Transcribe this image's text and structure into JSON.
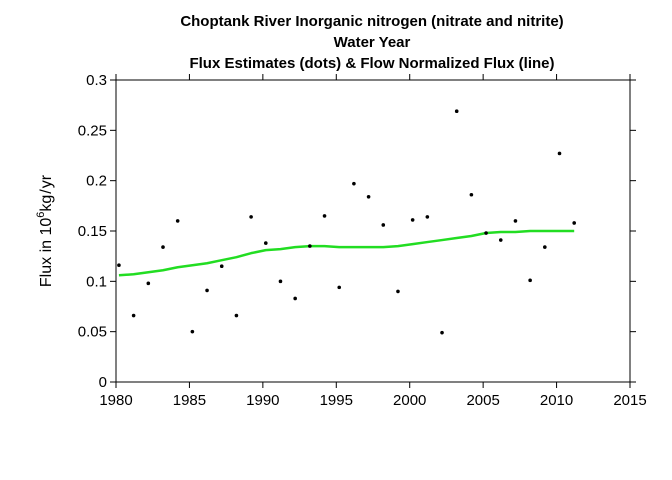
{
  "chart_data": {
    "type": "scatter",
    "title_line1": "Choptank River   Inorganic nitrogen (nitrate and nitrite)",
    "title_line2": "Water Year",
    "title_line3": "Flux Estimates (dots) & Flow Normalized Flux (line)",
    "ylabel": {
      "prefix": "Flux in 10",
      "exponent": "6",
      "unit_numerator": "kg",
      "slash": "/",
      "unit_denominator": "yr"
    },
    "xlabel": "",
    "xlim": [
      1980,
      2015
    ],
    "ylim": [
      0,
      0.3
    ],
    "x_ticks": [
      1980,
      1985,
      1990,
      1995,
      2000,
      2005,
      2010,
      2015
    ],
    "x_tick_labels": [
      "1980",
      "1985",
      "1990",
      "1995",
      "2000",
      "2005",
      "2010",
      "2015"
    ],
    "y_ticks": [
      0,
      0.05,
      0.1,
      0.15,
      0.2,
      0.25,
      0.3
    ],
    "y_tick_labels": [
      "0",
      "0.05",
      "0.1",
      "0.15",
      "0.2",
      "0.25",
      "0.3"
    ],
    "series": [
      {
        "name": "Flux Estimates",
        "kind": "points",
        "color": "#000000",
        "x": [
          1980.2,
          1981.2,
          1982.2,
          1983.2,
          1984.2,
          1985.2,
          1986.2,
          1987.2,
          1988.2,
          1989.2,
          1990.2,
          1991.2,
          1992.2,
          1993.2,
          1994.2,
          1995.2,
          1996.2,
          1997.2,
          1998.2,
          1999.2,
          2000.2,
          2001.2,
          2002.2,
          2003.2,
          2004.2,
          2005.2,
          2006.2,
          2007.2,
          2008.2,
          2009.2,
          2010.2,
          2011.2
        ],
        "y": [
          0.116,
          0.066,
          0.098,
          0.134,
          0.16,
          0.05,
          0.091,
          0.115,
          0.066,
          0.164,
          0.138,
          0.1,
          0.083,
          0.135,
          0.165,
          0.094,
          0.197,
          0.184,
          0.156,
          0.09,
          0.161,
          0.164,
          0.049,
          0.269,
          0.186,
          0.148,
          0.141,
          0.16,
          0.101,
          0.134,
          0.227,
          0.158
        ]
      },
      {
        "name": "Flow Normalized Flux",
        "kind": "line",
        "color": "#22dd22",
        "x": [
          1980.2,
          1981.2,
          1982.2,
          1983.2,
          1984.2,
          1985.2,
          1986.2,
          1987.2,
          1988.2,
          1989.2,
          1990.2,
          1991.2,
          1992.2,
          1993.2,
          1994.2,
          1995.2,
          1996.2,
          1997.2,
          1998.2,
          1999.2,
          2000.2,
          2001.2,
          2002.2,
          2003.2,
          2004.2,
          2005.2,
          2006.2,
          2007.2,
          2008.2,
          2009.2,
          2010.2,
          2011.2
        ],
        "y": [
          0.106,
          0.107,
          0.109,
          0.111,
          0.114,
          0.116,
          0.118,
          0.121,
          0.124,
          0.128,
          0.131,
          0.132,
          0.134,
          0.135,
          0.135,
          0.134,
          0.134,
          0.134,
          0.134,
          0.135,
          0.137,
          0.139,
          0.141,
          0.143,
          0.145,
          0.148,
          0.149,
          0.149,
          0.15,
          0.15,
          0.15,
          0.15
        ]
      }
    ]
  }
}
